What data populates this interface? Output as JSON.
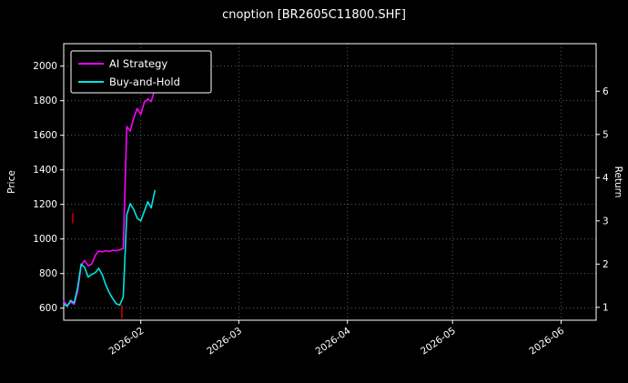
{
  "title": "cnoption [BR2605C11800.SHF]",
  "chart_data": {
    "type": "line",
    "title": "cnoption [BR2605C11800.SHF]",
    "ylabel_left": "Price",
    "ylabel_right": "Return",
    "background": "#000000",
    "text_color": "#ffffff",
    "grid_color": "#aaaaaa",
    "x_unit": "days since 2026-01-10",
    "xlim_days": [
      0,
      152
    ],
    "price_ylim": [
      530,
      2130
    ],
    "return_ylim": [
      0.7,
      7.1
    ],
    "x_ticks": [
      {
        "day": 22,
        "label": "2026-02"
      },
      {
        "day": 50,
        "label": "2026-03"
      },
      {
        "day": 81,
        "label": "2026-04"
      },
      {
        "day": 111,
        "label": "2026-05"
      },
      {
        "day": 142,
        "label": "2026-06"
      }
    ],
    "price_ticks": [
      600,
      800,
      1000,
      1200,
      1400,
      1600,
      1800,
      2000
    ],
    "return_ticks": [
      1,
      2,
      3,
      4,
      5,
      6
    ],
    "series": [
      {
        "name": "AI Strategy",
        "color": "#ff00ff",
        "axis": "price",
        "days": [
          0,
          1,
          2,
          3,
          4,
          5,
          6,
          7,
          8,
          9,
          10,
          11,
          12,
          13,
          14,
          15,
          16,
          17,
          18,
          19,
          20,
          21,
          22,
          23,
          24,
          25,
          26
        ],
        "values": [
          640,
          615,
          635,
          622,
          700,
          850,
          875,
          845,
          855,
          905,
          930,
          925,
          932,
          928,
          935,
          932,
          938,
          945,
          1650,
          1625,
          1700,
          1755,
          1720,
          1790,
          1810,
          1795,
          1870
        ]
      },
      {
        "name": "Buy-and-Hold",
        "color": "#00e5e5",
        "axis": "price",
        "days": [
          0,
          1,
          2,
          3,
          4,
          5,
          6,
          7,
          8,
          9,
          10,
          11,
          12,
          13,
          14,
          15,
          16,
          17,
          18,
          19,
          20,
          21,
          22,
          23,
          24,
          25,
          26
        ],
        "values": [
          625,
          610,
          645,
          630,
          720,
          855,
          835,
          780,
          795,
          805,
          830,
          795,
          735,
          690,
          655,
          625,
          618,
          665,
          1140,
          1205,
          1170,
          1120,
          1105,
          1160,
          1215,
          1180,
          1280
        ]
      }
    ],
    "markers": [
      {
        "type": "vline-segment",
        "color": "#ff0000",
        "day": 2.6,
        "price_from": 1090,
        "price_to": 1150
      },
      {
        "type": "vline-segment",
        "color": "#ff0000",
        "day": 16.6,
        "price_from": 540,
        "price_to": 620
      }
    ],
    "legend": {
      "position": "upper-left",
      "entries": [
        {
          "label": "AI Strategy",
          "color": "#ff00ff"
        },
        {
          "label": "Buy-and-Hold",
          "color": "#00e5e5"
        }
      ]
    }
  }
}
